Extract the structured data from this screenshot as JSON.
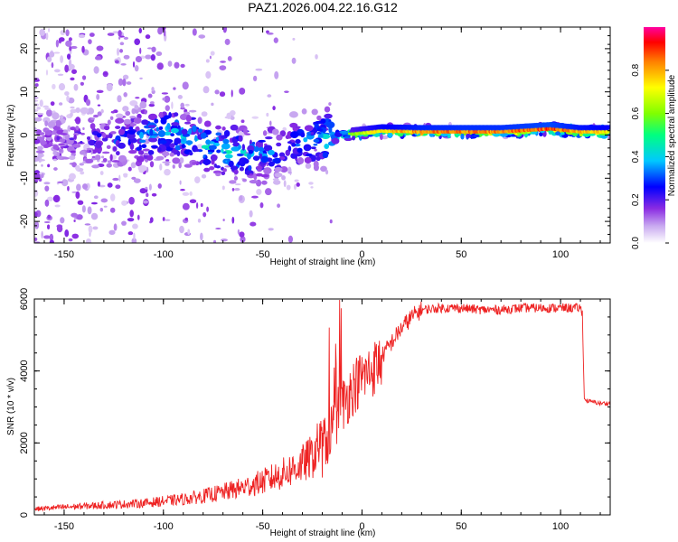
{
  "chart_data": [
    {
      "type": "heatmap",
      "title": "PAZ1.2026.004.22.16.G12",
      "xlabel": "Height of straight line (km)",
      "ylabel": "Frequency (Hz)",
      "xlim": [
        -165,
        125
      ],
      "ylim": [
        -25,
        25
      ],
      "xticks": [
        -150,
        -100,
        -50,
        0,
        50,
        100
      ],
      "yticks": [
        -20,
        -10,
        0,
        10,
        20
      ],
      "grid": false,
      "colorbar": {
        "label": "Normalized spectral amplitude",
        "range": [
          0,
          1
        ],
        "ticks": [
          0.0,
          0.2,
          0.4,
          0.6,
          0.8
        ],
        "colors": [
          "#ffffff",
          "#c8a8f0",
          "#8a2be2",
          "#0000ff",
          "#00c8ff",
          "#00ff80",
          "#80ff00",
          "#ffff00",
          "#ff8000",
          "#ff0000",
          "#ff00a0"
        ]
      },
      "ridge": [
        {
          "x": -160,
          "freq": -1.0,
          "amplitude": 0.15
        },
        {
          "x": -140,
          "freq": -1.0,
          "amplitude": 0.22
        },
        {
          "x": -120,
          "freq": -1.5,
          "amplitude": 0.3
        },
        {
          "x": -100,
          "freq": 1.0,
          "amplitude": 0.4
        },
        {
          "x": -80,
          "freq": -2.0,
          "amplitude": 0.42
        },
        {
          "x": -65,
          "freq": -4.0,
          "amplitude": 0.45
        },
        {
          "x": -50,
          "freq": -5.0,
          "amplitude": 0.35
        },
        {
          "x": -35,
          "freq": -2.0,
          "amplitude": 0.3
        },
        {
          "x": -20,
          "freq": -1.0,
          "amplitude": 0.4
        },
        {
          "x": -10,
          "freq": 0.0,
          "amplitude": 0.55
        },
        {
          "x": 0,
          "freq": 0.5,
          "amplitude": 0.7
        },
        {
          "x": 10,
          "freq": 1.0,
          "amplitude": 0.8
        },
        {
          "x": 30,
          "freq": 0.8,
          "amplitude": 0.88
        },
        {
          "x": 50,
          "freq": 0.8,
          "amplitude": 0.9
        },
        {
          "x": 70,
          "freq": 0.8,
          "amplitude": 0.9
        },
        {
          "x": 95,
          "freq": 1.5,
          "amplitude": 0.95
        },
        {
          "x": 110,
          "freq": 0.8,
          "amplitude": 0.85
        },
        {
          "x": 125,
          "freq": 0.8,
          "amplitude": 0.8
        }
      ]
    },
    {
      "type": "line",
      "xlabel": "Height of straight line (km)",
      "ylabel": "SNR (10 * v/v)",
      "xlim": [
        -165,
        125
      ],
      "ylim": [
        0,
        6000
      ],
      "xticks": [
        -150,
        -100,
        -50,
        0,
        50,
        100
      ],
      "yticks": [
        0,
        2000,
        4000,
        6000
      ],
      "color": "#ee2222",
      "series": [
        {
          "name": "SNR",
          "x": [
            -165,
            -150,
            -130,
            -110,
            -100,
            -90,
            -80,
            -70,
            -60,
            -50,
            -40,
            -30,
            -25,
            -20,
            -15,
            -12,
            -10,
            -5,
            0,
            5,
            10,
            15,
            20,
            25,
            30,
            40,
            50,
            60,
            70,
            80,
            90,
            100,
            105,
            110,
            111,
            112,
            115,
            120,
            125
          ],
          "y": [
            150,
            200,
            250,
            300,
            350,
            400,
            480,
            580,
            700,
            850,
            1050,
            1300,
            1500,
            1900,
            2500,
            2900,
            3100,
            3600,
            3900,
            4100,
            4400,
            4800,
            5200,
            5500,
            5700,
            5750,
            5750,
            5700,
            5700,
            5750,
            5750,
            5750,
            5750,
            5750,
            5600,
            3200,
            3150,
            3100,
            3100
          ]
        }
      ]
    }
  ]
}
